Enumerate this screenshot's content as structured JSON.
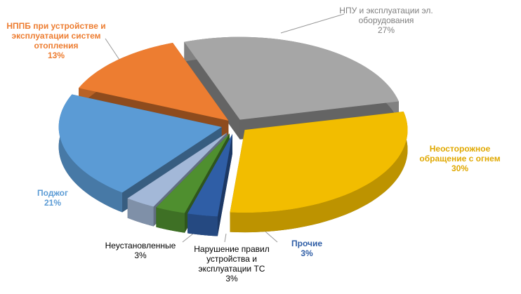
{
  "chart_data": {
    "type": "pie3d",
    "categories": [
      "НПУ и эксплуатации эл. оборудования",
      "Неосторожное обращение с огнем",
      "Прочие",
      "Нарушение правил устройства и эксплуатации ТС",
      "Неустановленные",
      "Поджог",
      "НППБ при устройстве и эксплуатации систем отопления"
    ],
    "values": [
      27,
      30,
      3,
      3,
      3,
      21,
      13
    ],
    "value_labels": [
      "27%",
      "30%",
      "3%",
      "3%",
      "3%",
      "21%",
      "13%"
    ],
    "colors": [
      "#a6a6a6",
      "#f2bd00",
      "#2f5ea6",
      "#4f8f2f",
      "#a3b8d8",
      "#5b9bd5",
      "#ed7d31"
    ],
    "label_colors": [
      "#7f7f7f",
      "#e0a800",
      "#2f5ea6",
      "#000000",
      "#000000",
      "#5b9bd5",
      "#ed7d31"
    ],
    "start_angle": -110
  }
}
